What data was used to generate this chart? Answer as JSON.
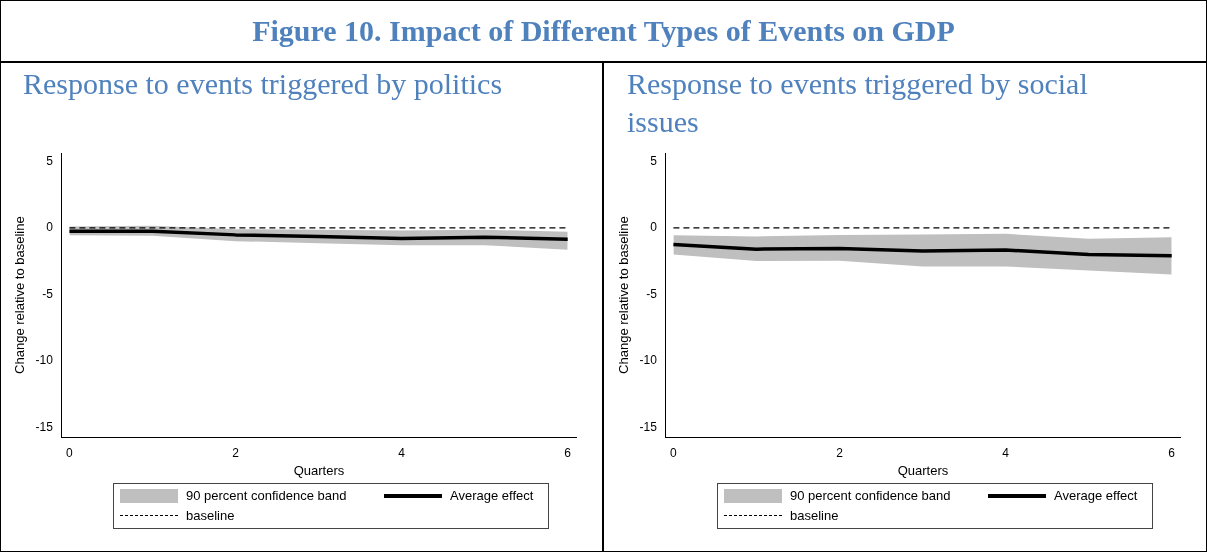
{
  "chart_data": [
    {
      "type": "line",
      "title": "Figure 10. Impact of Different Types of Events on GDP",
      "subtitle": "Response to events triggered by politics",
      "xlabel": "Quarters",
      "ylabel": "Change relative to baseline",
      "x": [
        0,
        1,
        2,
        3,
        4,
        5,
        6
      ],
      "series": [
        {
          "name": "Average effect",
          "color": "#000000",
          "values": [
            -0.25,
            -0.25,
            -0.53,
            -0.65,
            -0.8,
            -0.7,
            -0.86
          ],
          "lower": [
            -0.55,
            -0.6,
            -1.0,
            -1.15,
            -1.3,
            -1.3,
            -1.65
          ],
          "upper": [
            0.1,
            0.15,
            -0.1,
            -0.15,
            -0.2,
            -0.15,
            -0.3
          ]
        }
      ],
      "annotations": [
        "90 percent confidence band"
      ],
      "ref_lines": [
        {
          "axis": "y",
          "value": 0,
          "label": "baseline",
          "color": "#000000",
          "line_style": "dashed"
        }
      ],
      "xlim": [
        -0.09,
        6.1
      ],
      "xticks": [
        0,
        2,
        4,
        6
      ],
      "ylim": [
        -15.7,
        5.6
      ],
      "yticks": [
        -15,
        -10,
        -5,
        0,
        5
      ],
      "grid": false,
      "legend": "bottom",
      "marker": "none"
    },
    {
      "type": "line",
      "subtitle": "Response to events triggered by social issues",
      "xlabel": "Quarters",
      "ylabel": "Change relative to baseline",
      "x": [
        0,
        1,
        2,
        3,
        4,
        5,
        6
      ],
      "series": [
        {
          "name": "Average effect",
          "color": "#000000",
          "values": [
            -1.26,
            -1.6,
            -1.55,
            -1.74,
            -1.67,
            -2.0,
            -2.1
          ],
          "lower": [
            -2.0,
            -2.5,
            -2.47,
            -2.9,
            -2.9,
            -3.2,
            -3.5
          ],
          "upper": [
            -0.55,
            -0.65,
            -0.53,
            -0.5,
            -0.45,
            -0.83,
            -0.7
          ]
        }
      ],
      "annotations": [
        "90 percent confidence band"
      ],
      "ref_lines": [
        {
          "axis": "y",
          "value": 0,
          "label": "baseline",
          "color": "#000000",
          "line_style": "dashed"
        }
      ],
      "xlim": [
        -0.09,
        6.1
      ],
      "xticks": [
        0,
        2,
        4,
        6
      ],
      "ylim": [
        -15.7,
        5.6
      ],
      "yticks": [
        -15,
        -10,
        -5,
        0,
        5
      ],
      "grid": false,
      "legend": "bottom",
      "marker": "none"
    }
  ]
}
